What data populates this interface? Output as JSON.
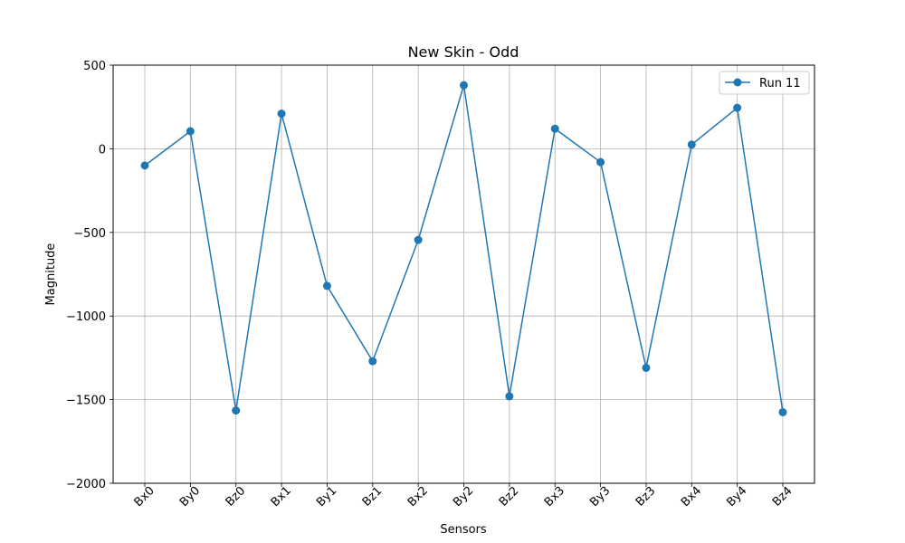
{
  "chart_data": {
    "type": "line",
    "title": "New Skin - Odd",
    "xlabel": "Sensors",
    "ylabel": "Magnitude",
    "categories": [
      "Bx0",
      "By0",
      "Bz0",
      "Bx1",
      "By1",
      "Bz1",
      "Bx2",
      "By2",
      "Bz2",
      "Bx3",
      "By3",
      "Bz3",
      "Bx4",
      "By4",
      "Bz4"
    ],
    "yticks": [
      500,
      0,
      -500,
      -1000,
      -1500,
      -2000
    ],
    "ytick_labels": [
      "500",
      "0",
      "−500",
      "−1000",
      "−1500",
      "−2000"
    ],
    "ylim": [
      -2000,
      500
    ],
    "grid": true,
    "legend_position": "top-right",
    "series": [
      {
        "name": "Run 11",
        "color": "#1f77b4",
        "marker": "circle",
        "values": [
          -100,
          105,
          -1565,
          210,
          -820,
          -1270,
          -545,
          380,
          -1480,
          120,
          -80,
          -1310,
          25,
          245,
          -1575
        ]
      }
    ]
  }
}
